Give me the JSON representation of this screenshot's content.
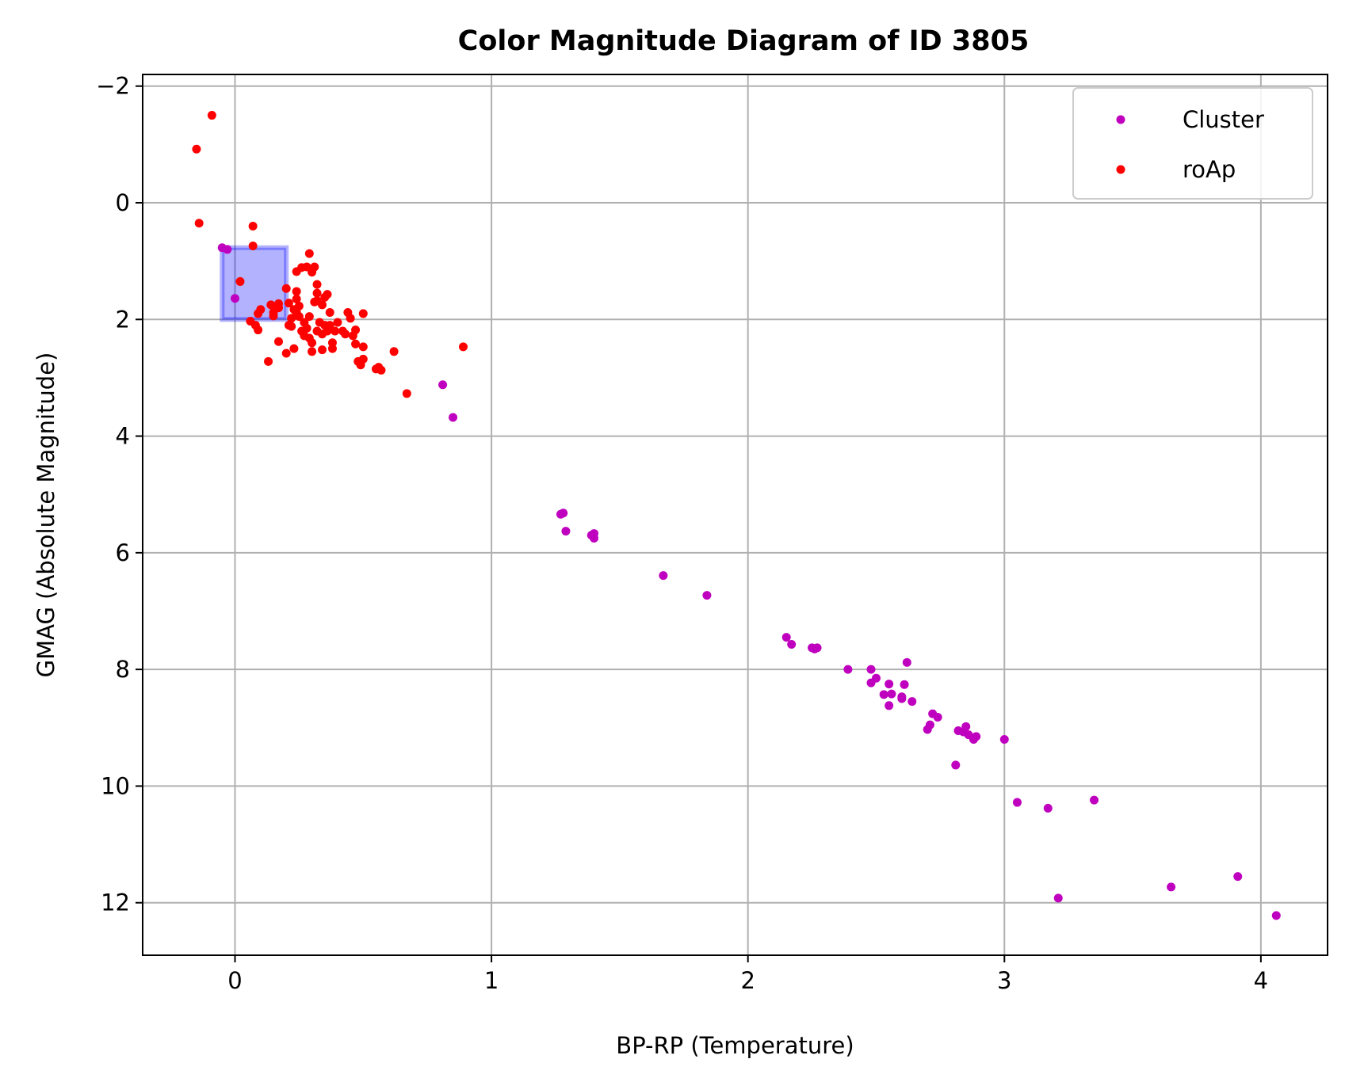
{
  "chart_data": {
    "type": "scatter",
    "title": "Color Magnitude Diagram of ID 3805",
    "xlabel": "BP-RP (Temperature)",
    "ylabel": "GMAG (Absolute Magnitude)",
    "xlim": [
      -0.36,
      4.26
    ],
    "ylim": [
      12.9,
      -2.2
    ],
    "y_inverted": true,
    "grid": true,
    "legend_position": "top-right",
    "x_ticks": [
      0,
      1,
      2,
      3,
      4
    ],
    "x_tick_labels": [
      "0",
      "1",
      "2",
      "3",
      "4"
    ],
    "y_ticks": [
      -2,
      0,
      2,
      4,
      6,
      8,
      10,
      12
    ],
    "y_tick_labels": [
      "−2",
      "0",
      "2",
      "4",
      "6",
      "8",
      "10",
      "12"
    ],
    "highlight_box": {
      "x0": -0.05,
      "x1": 0.2,
      "y0": 0.77,
      "y1": 2.0,
      "color": "#0000ff"
    },
    "series": [
      {
        "name": "Cluster",
        "color": "#bf00bf",
        "points": [
          [
            -0.05,
            0.77
          ],
          [
            -0.03,
            0.8
          ],
          [
            0.0,
            1.64
          ],
          [
            0.81,
            3.12
          ],
          [
            0.85,
            3.68
          ],
          [
            1.27,
            5.34
          ],
          [
            1.28,
            5.32
          ],
          [
            1.29,
            5.63
          ],
          [
            1.39,
            5.7
          ],
          [
            1.4,
            5.67
          ],
          [
            1.4,
            5.75
          ],
          [
            1.67,
            6.39
          ],
          [
            1.84,
            6.73
          ],
          [
            2.15,
            7.45
          ],
          [
            2.17,
            7.57
          ],
          [
            2.25,
            7.63
          ],
          [
            2.26,
            7.65
          ],
          [
            2.27,
            7.63
          ],
          [
            2.39,
            8.0
          ],
          [
            2.48,
            8.23
          ],
          [
            2.48,
            8.0
          ],
          [
            2.5,
            8.15
          ],
          [
            2.53,
            8.43
          ],
          [
            2.55,
            8.62
          ],
          [
            2.55,
            8.25
          ],
          [
            2.56,
            8.42
          ],
          [
            2.6,
            8.47
          ],
          [
            2.6,
            8.5
          ],
          [
            2.61,
            8.26
          ],
          [
            2.62,
            7.88
          ],
          [
            2.64,
            8.55
          ],
          [
            2.7,
            9.03
          ],
          [
            2.71,
            8.95
          ],
          [
            2.72,
            8.76
          ],
          [
            2.74,
            8.82
          ],
          [
            2.81,
            9.64
          ],
          [
            2.82,
            9.05
          ],
          [
            2.84,
            9.07
          ],
          [
            2.85,
            8.98
          ],
          [
            2.86,
            9.12
          ],
          [
            2.88,
            9.2
          ],
          [
            2.89,
            9.15
          ],
          [
            3.0,
            9.2
          ],
          [
            3.05,
            10.28
          ],
          [
            3.17,
            10.38
          ],
          [
            3.21,
            11.92
          ],
          [
            3.35,
            10.24
          ],
          [
            3.65,
            11.73
          ],
          [
            3.91,
            11.55
          ],
          [
            4.06,
            12.22
          ]
        ]
      },
      {
        "name": "roAp",
        "color": "#ff0000",
        "points": [
          [
            -0.09,
            -1.5
          ],
          [
            -0.15,
            -0.92
          ],
          [
            -0.14,
            0.35
          ],
          [
            0.07,
            0.4
          ],
          [
            0.07,
            0.74
          ],
          [
            0.02,
            1.35
          ],
          [
            0.09,
            1.9
          ],
          [
            0.1,
            1.83
          ],
          [
            0.06,
            2.03
          ],
          [
            0.08,
            2.1
          ],
          [
            0.09,
            2.18
          ],
          [
            0.14,
            1.75
          ],
          [
            0.15,
            1.88
          ],
          [
            0.15,
            1.94
          ],
          [
            0.17,
            1.8
          ],
          [
            0.17,
            1.73
          ],
          [
            0.13,
            2.72
          ],
          [
            0.17,
            2.38
          ],
          [
            0.2,
            2.58
          ],
          [
            0.2,
            1.47
          ],
          [
            0.21,
            1.72
          ],
          [
            0.21,
            2.1
          ],
          [
            0.22,
            1.98
          ],
          [
            0.22,
            2.12
          ],
          [
            0.23,
            1.83
          ],
          [
            0.23,
            2.5
          ],
          [
            0.24,
            1.52
          ],
          [
            0.24,
            1.65
          ],
          [
            0.24,
            1.88
          ],
          [
            0.24,
            1.18
          ],
          [
            0.25,
            1.77
          ],
          [
            0.25,
            1.95
          ],
          [
            0.26,
            1.11
          ],
          [
            0.26,
            2.2
          ],
          [
            0.27,
            2.28
          ],
          [
            0.27,
            2.05
          ],
          [
            0.28,
            2.15
          ],
          [
            0.28,
            1.1
          ],
          [
            0.29,
            2.32
          ],
          [
            0.29,
            1.95
          ],
          [
            0.29,
            0.87
          ],
          [
            0.3,
            2.4
          ],
          [
            0.3,
            1.19
          ],
          [
            0.3,
            2.55
          ],
          [
            0.31,
            1.7
          ],
          [
            0.31,
            1.1
          ],
          [
            0.32,
            2.2
          ],
          [
            0.32,
            1.4
          ],
          [
            0.32,
            1.55
          ],
          [
            0.32,
            1.68
          ],
          [
            0.33,
            2.05
          ],
          [
            0.34,
            2.25
          ],
          [
            0.34,
            1.75
          ],
          [
            0.34,
            2.52
          ],
          [
            0.35,
            2.1
          ],
          [
            0.35,
            1.62
          ],
          [
            0.36,
            2.2
          ],
          [
            0.36,
            1.57
          ],
          [
            0.37,
            2.1
          ],
          [
            0.37,
            1.88
          ],
          [
            0.38,
            2.4
          ],
          [
            0.38,
            2.5
          ],
          [
            0.39,
            2.2
          ],
          [
            0.4,
            2.05
          ],
          [
            0.42,
            2.2
          ],
          [
            0.43,
            2.25
          ],
          [
            0.44,
            1.88
          ],
          [
            0.45,
            1.98
          ],
          [
            0.46,
            2.28
          ],
          [
            0.47,
            2.18
          ],
          [
            0.47,
            2.42
          ],
          [
            0.48,
            2.72
          ],
          [
            0.49,
            2.78
          ],
          [
            0.5,
            2.68
          ],
          [
            0.5,
            1.9
          ],
          [
            0.5,
            2.47
          ],
          [
            0.55,
            2.85
          ],
          [
            0.56,
            2.82
          ],
          [
            0.57,
            2.87
          ],
          [
            0.62,
            2.55
          ],
          [
            0.67,
            3.27
          ],
          [
            0.89,
            2.47
          ]
        ]
      }
    ]
  }
}
